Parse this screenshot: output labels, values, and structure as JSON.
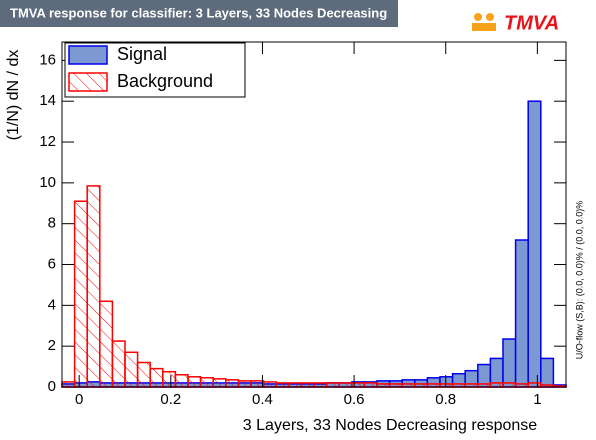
{
  "chart_data": {
    "type": "histogram",
    "title": "TMVA response for classifier: 3 Layers, 33 Nodes Decreasing",
    "logo": "TMVA",
    "x_label": "3 Layers, 33 Nodes Decreasing response",
    "y_label": "(1/N) dN / dx",
    "side_note": "U/O-flow (S,B): (0.0, 0.0)% / (0.0, 0.0)%",
    "bins": [
      -0.0375,
      -0.01,
      0.0175,
      0.045,
      0.0725,
      0.1,
      0.1275,
      0.155,
      0.1825,
      0.21,
      0.2375,
      0.265,
      0.2925,
      0.32,
      0.3475,
      0.375,
      0.4025,
      0.43,
      0.4575,
      0.485,
      0.5125,
      0.54,
      0.5675,
      0.595,
      0.6225,
      0.65,
      0.6775,
      0.705,
      0.7325,
      0.76,
      0.7875,
      0.815,
      0.8425,
      0.87,
      0.8975,
      0.925,
      0.9525,
      0.98,
      1.0075,
      1.035,
      1.0625
    ],
    "series": [
      {
        "name": "Signal",
        "color": "#7d99d1",
        "line_color": "#0000ee",
        "hatch": false,
        "values": [
          0.15,
          0.2,
          0.25,
          0.2,
          0.2,
          0.2,
          0.2,
          0.2,
          0.2,
          0.2,
          0.2,
          0.2,
          0.2,
          0.2,
          0.2,
          0.2,
          0.15,
          0.15,
          0.15,
          0.15,
          0.15,
          0.2,
          0.2,
          0.25,
          0.25,
          0.3,
          0.3,
          0.35,
          0.35,
          0.45,
          0.5,
          0.65,
          0.8,
          1.1,
          1.4,
          2.35,
          7.2,
          14.0,
          1.4,
          0.1
        ]
      },
      {
        "name": "Background",
        "color": "#ff0000",
        "line_color": "#ff0000",
        "hatch": true,
        "values": [
          0.25,
          9.1,
          9.85,
          4.2,
          2.25,
          1.7,
          1.2,
          0.9,
          0.75,
          0.6,
          0.5,
          0.45,
          0.4,
          0.35,
          0.3,
          0.3,
          0.25,
          0.2,
          0.2,
          0.2,
          0.2,
          0.2,
          0.2,
          0.2,
          0.2,
          0.15,
          0.15,
          0.15,
          0.15,
          0.15,
          0.15,
          0.15,
          0.15,
          0.15,
          0.2,
          0.2,
          0.15,
          0.2,
          0.1,
          0.05
        ]
      }
    ],
    "xlim": [
      -0.0375,
      1.0625
    ],
    "xticks": [
      0,
      0.2,
      0.4,
      0.6,
      0.8,
      1
    ],
    "ylim": [
      0,
      16.9
    ],
    "yticks": [
      0,
      2,
      4,
      6,
      8,
      10,
      12,
      14,
      16
    ],
    "legend": "upper left"
  }
}
